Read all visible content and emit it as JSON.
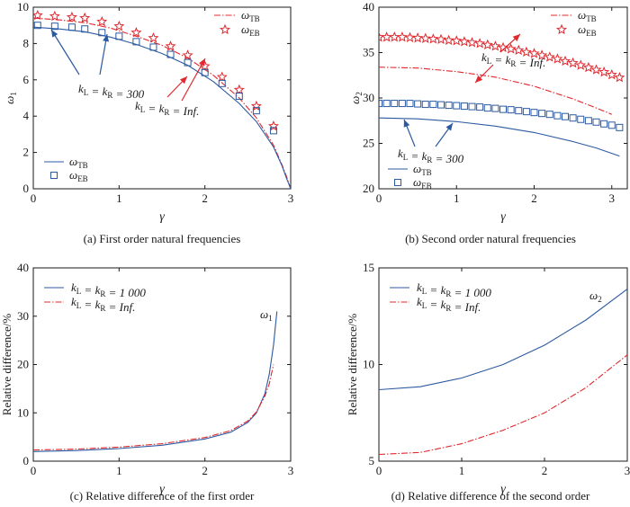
{
  "chart_data": [
    {
      "type": "line",
      "caption": "(a) First order natural frequencies",
      "xlabel": "γ",
      "ylabel": "ω1",
      "xlim": [
        0,
        3
      ],
      "ylim": [
        0,
        10
      ],
      "xticks": [
        "0",
        "1",
        "2",
        "3"
      ],
      "yticks": [
        "0",
        "2",
        "4",
        "6",
        "8",
        "10"
      ],
      "legend_top": [
        "ωTB",
        "ωEB"
      ],
      "legend_bottom": [
        "ωTB",
        "ωEB"
      ],
      "annotations": [
        "kL = kR = 300",
        "kL = kR = Inf."
      ],
      "series": [
        {
          "name": "ωTB",
          "style": "red-dashdot",
          "x": [
            0,
            0.3,
            0.6,
            0.9,
            1.2,
            1.5,
            1.8,
            2.1,
            2.4,
            2.6,
            2.8,
            2.9,
            2.95,
            3.0
          ],
          "y": [
            9.4,
            9.3,
            9.15,
            8.85,
            8.4,
            7.9,
            7.2,
            6.25,
            5.0,
            3.9,
            2.4,
            1.3,
            0.7,
            0
          ]
        },
        {
          "name": "ωEB",
          "style": "red-star",
          "x": [
            0.05,
            0.25,
            0.45,
            0.6,
            0.8,
            1.0,
            1.2,
            1.4,
            1.6,
            1.8,
            2.0,
            2.2,
            2.4,
            2.6,
            2.8
          ],
          "y": [
            9.55,
            9.5,
            9.45,
            9.4,
            9.2,
            8.95,
            8.6,
            8.3,
            7.85,
            7.35,
            6.75,
            6.15,
            5.45,
            4.55,
            3.45
          ]
        },
        {
          "name": "ωTB",
          "style": "blue-solid",
          "x": [
            0,
            0.3,
            0.6,
            0.9,
            1.2,
            1.5,
            1.8,
            2.1,
            2.4,
            2.6,
            2.8,
            2.9,
            2.95,
            3.0
          ],
          "y": [
            8.9,
            8.8,
            8.65,
            8.35,
            7.95,
            7.45,
            6.8,
            5.9,
            4.7,
            3.7,
            2.3,
            1.25,
            0.6,
            0
          ]
        },
        {
          "name": "ωEB",
          "style": "blue-square",
          "x": [
            0.05,
            0.25,
            0.45,
            0.6,
            0.8,
            1.0,
            1.2,
            1.4,
            1.6,
            1.8,
            2.0,
            2.2,
            2.4,
            2.6,
            2.8
          ],
          "y": [
            9.0,
            8.95,
            8.9,
            8.8,
            8.6,
            8.4,
            8.1,
            7.8,
            7.4,
            6.95,
            6.4,
            5.8,
            5.1,
            4.3,
            3.2
          ]
        }
      ]
    },
    {
      "type": "line",
      "caption": "(b) Second order natural frequencies",
      "xlabel": "γ",
      "ylabel": "ω2",
      "xlim": [
        0,
        3.2
      ],
      "ylim": [
        20,
        40
      ],
      "xticks": [
        "0",
        "1",
        "2",
        "3"
      ],
      "yticks": [
        "20",
        "25",
        "30",
        "35",
        "40"
      ],
      "legend_top": [
        "ωTB",
        "ωEB"
      ],
      "legend_bottom": [
        "ωTB",
        "ωEB"
      ],
      "annotations": [
        "kL = kR = Inf.",
        "kL = kR = 300"
      ],
      "series": [
        {
          "name": "ωTB",
          "style": "red-dashdot",
          "x": [
            0,
            0.5,
            1.0,
            1.5,
            2.0,
            2.5,
            2.8,
            3.0
          ],
          "y": [
            33.4,
            33.3,
            32.9,
            32.3,
            31.3,
            29.9,
            28.9,
            28.2
          ]
        },
        {
          "name": "ωEB",
          "style": "red-star",
          "x": [
            0,
            0.1,
            0.2,
            0.3,
            0.4,
            0.5,
            0.6,
            0.7,
            0.8,
            0.9,
            1.0,
            1.1,
            1.2,
            1.3,
            1.4,
            1.5,
            1.6,
            1.7,
            1.8,
            1.9,
            2.0,
            2.1,
            2.2,
            2.3,
            2.4,
            2.5,
            2.6,
            2.7,
            2.8,
            2.9,
            3.0,
            3.1
          ],
          "y": [
            36.7,
            36.7,
            36.7,
            36.7,
            36.65,
            36.6,
            36.55,
            36.5,
            36.45,
            36.35,
            36.3,
            36.2,
            36.1,
            36.0,
            35.85,
            35.7,
            35.55,
            35.4,
            35.25,
            35.05,
            34.9,
            34.7,
            34.5,
            34.3,
            34.05,
            33.85,
            33.6,
            33.35,
            33.1,
            32.85,
            32.55,
            32.25
          ]
        },
        {
          "name": "ωTB",
          "style": "blue-solid",
          "x": [
            0,
            0.5,
            1.0,
            1.5,
            2.0,
            2.5,
            2.8,
            3.1
          ],
          "y": [
            27.8,
            27.7,
            27.4,
            26.9,
            26.2,
            25.2,
            24.5,
            23.6
          ]
        },
        {
          "name": "ωEB",
          "style": "blue-square",
          "x": [
            0,
            0.1,
            0.2,
            0.3,
            0.4,
            0.5,
            0.6,
            0.7,
            0.8,
            0.9,
            1.0,
            1.1,
            1.2,
            1.3,
            1.4,
            1.5,
            1.6,
            1.7,
            1.8,
            1.9,
            2.0,
            2.1,
            2.2,
            2.3,
            2.4,
            2.5,
            2.6,
            2.7,
            2.8,
            2.9,
            3.0,
            3.1
          ],
          "y": [
            29.4,
            29.4,
            29.4,
            29.4,
            29.4,
            29.35,
            29.3,
            29.3,
            29.25,
            29.2,
            29.15,
            29.1,
            29.05,
            29.0,
            28.9,
            28.85,
            28.75,
            28.7,
            28.6,
            28.5,
            28.4,
            28.3,
            28.2,
            28.05,
            27.95,
            27.8,
            27.65,
            27.5,
            27.35,
            27.15,
            27.0,
            26.75
          ]
        }
      ]
    },
    {
      "type": "line",
      "caption": "(c) Relative difference of the first order",
      "xlabel": "γ",
      "ylabel": "Relative difference/%",
      "xlim": [
        0,
        3
      ],
      "ylim": [
        0,
        40
      ],
      "xticks": [
        "0",
        "1",
        "2",
        "3"
      ],
      "yticks": [
        "0",
        "10",
        "20",
        "30",
        "40"
      ],
      "legend": [
        "kL = kR = 1 000",
        "kL = kR = Inf."
      ],
      "annotation": "ω1",
      "series": [
        {
          "name": "kL = kR = 1 000",
          "style": "blue-solid",
          "x": [
            0,
            0.5,
            1.0,
            1.5,
            2.0,
            2.3,
            2.5,
            2.6,
            2.7,
            2.75,
            2.8,
            2.84
          ],
          "y": [
            2.0,
            2.2,
            2.6,
            3.3,
            4.6,
            6.0,
            8.0,
            10.0,
            14.0,
            18.0,
            24.0,
            31.0
          ]
        },
        {
          "name": "kL = kR = Inf.",
          "style": "red-dashdot",
          "x": [
            0,
            0.5,
            1.0,
            1.5,
            2.0,
            2.3,
            2.5,
            2.6,
            2.7,
            2.75,
            2.8
          ],
          "y": [
            2.3,
            2.5,
            2.9,
            3.6,
            4.9,
            6.3,
            8.3,
            10.2,
            13.5,
            16.0,
            20.0
          ]
        }
      ]
    },
    {
      "type": "line",
      "caption": "(d) Relative difference of the second order",
      "xlabel": "γ",
      "ylabel": "Relative difference/%",
      "xlim": [
        0,
        3
      ],
      "ylim": [
        5,
        15
      ],
      "xticks": [
        "0",
        "1",
        "2",
        "3"
      ],
      "yticks": [
        "5",
        "10",
        "15"
      ],
      "legend": [
        "kL = kR = 1 000",
        "kL = kR = Inf."
      ],
      "annotation": "ω2",
      "series": [
        {
          "name": "kL = kR = 1 000",
          "style": "blue-solid",
          "x": [
            0,
            0.5,
            1.0,
            1.5,
            2.0,
            2.5,
            3.0
          ],
          "y": [
            8.7,
            8.85,
            9.3,
            10.0,
            11.0,
            12.3,
            13.9
          ]
        },
        {
          "name": "kL = kR = Inf.",
          "style": "red-dashdot",
          "x": [
            0,
            0.5,
            1.0,
            1.5,
            2.0,
            2.5,
            3.0
          ],
          "y": [
            5.35,
            5.45,
            5.9,
            6.6,
            7.5,
            8.8,
            10.5
          ]
        }
      ]
    }
  ]
}
